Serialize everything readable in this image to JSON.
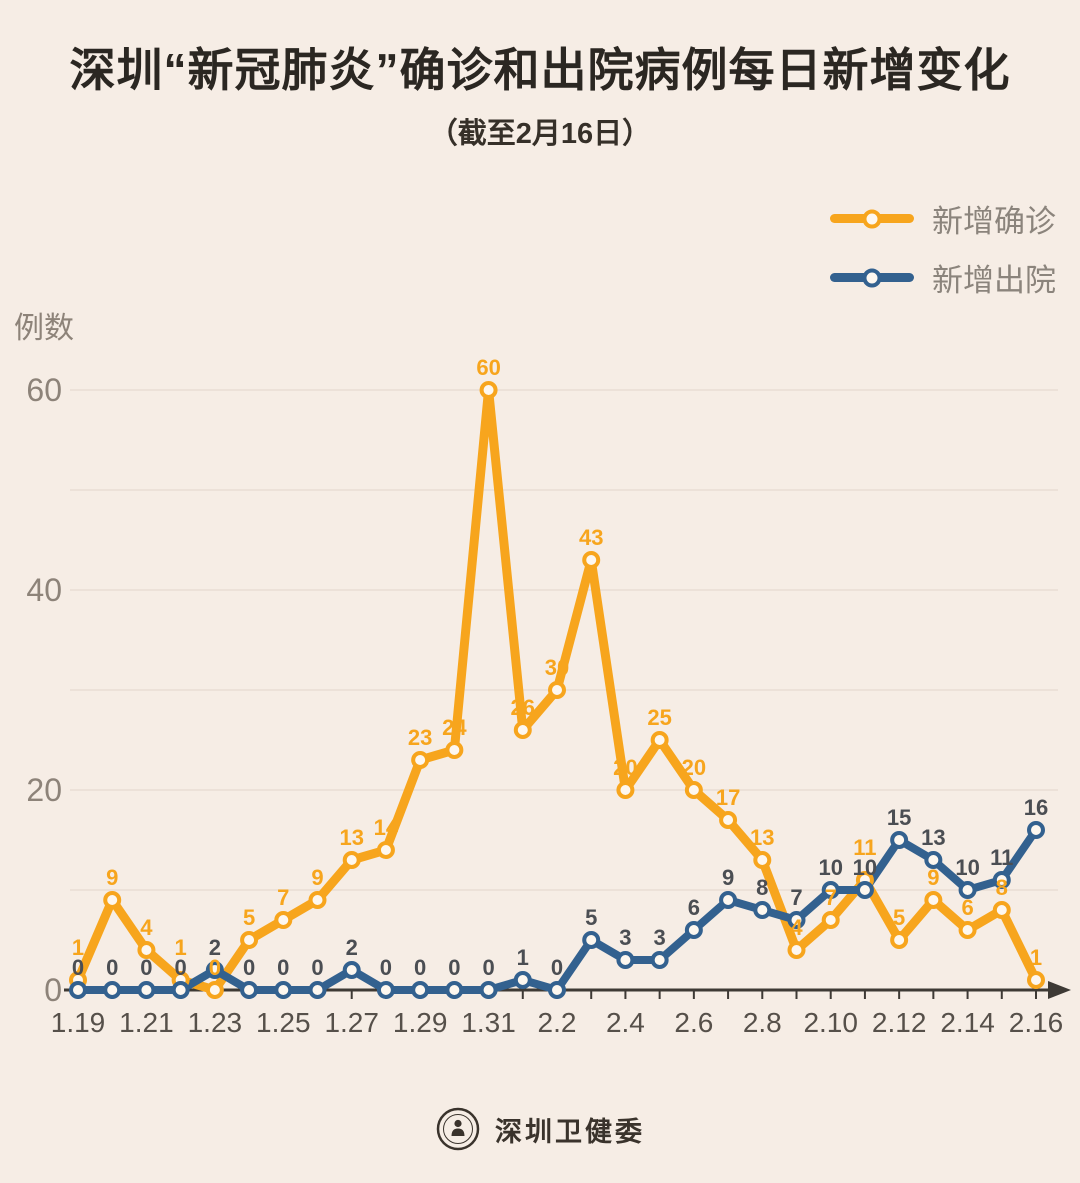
{
  "chart_data": {
    "type": "line",
    "title": "深圳“新冠肺炎”确诊和出院病例每日新增变化",
    "subtitle": "（截至2月16日）",
    "ylabel": "例数",
    "xlabel": "",
    "categories": [
      "1.19",
      "1.20",
      "1.21",
      "1.22",
      "1.23",
      "1.24",
      "1.25",
      "1.26",
      "1.27",
      "1.28",
      "1.29",
      "1.30",
      "1.31",
      "2.1",
      "2.2",
      "2.3",
      "2.4",
      "2.5",
      "2.6",
      "2.7",
      "2.8",
      "2.9",
      "2.10",
      "2.11",
      "2.12",
      "2.13",
      "2.14",
      "2.15",
      "2.16"
    ],
    "x_axis_labels_visible": [
      "1.19",
      "1.21",
      "1.23",
      "1.25",
      "1.27",
      "1.29",
      "1.31",
      "2.2",
      "2.4",
      "2.6",
      "2.8",
      "2.10",
      "2.12",
      "2.14",
      "2.16"
    ],
    "series": [
      {
        "name": "新增确诊",
        "color": "#f7a51d",
        "values": [
          1,
          9,
          4,
          1,
          0,
          5,
          7,
          9,
          13,
          14,
          23,
          24,
          60,
          26,
          30,
          43,
          20,
          25,
          20,
          17,
          13,
          4,
          7,
          11,
          5,
          9,
          6,
          8,
          1
        ]
      },
      {
        "name": "新增出院",
        "color": "#33618f",
        "values": [
          0,
          0,
          0,
          0,
          2,
          0,
          0,
          0,
          2,
          0,
          0,
          0,
          0,
          1,
          0,
          5,
          3,
          3,
          6,
          9,
          8,
          7,
          10,
          10,
          15,
          13,
          10,
          11,
          16
        ]
      }
    ],
    "yticks": [
      0,
      20,
      40,
      60
    ],
    "ylim": [
      0,
      60
    ],
    "grid": true,
    "grid_interval": 10,
    "legend_position": "top-right",
    "point_labels": true
  },
  "colors": {
    "background": "#f6ede5",
    "confirmed": "#f7a51d",
    "discharged": "#33618f",
    "grid": "#e8ddd3",
    "axis": "#3e3a35",
    "value_label_dark": "#4b4e53",
    "x_tick_label": "#56504a",
    "y_tick_label": "#8d8379",
    "legend_label": "#8b847c",
    "title": "#2b2722",
    "marker_fill": "#fdf7ef"
  },
  "footer": {
    "brand": "深圳卫健委",
    "logo_icon": "shenzhen-health-commission-emblem-icon"
  }
}
